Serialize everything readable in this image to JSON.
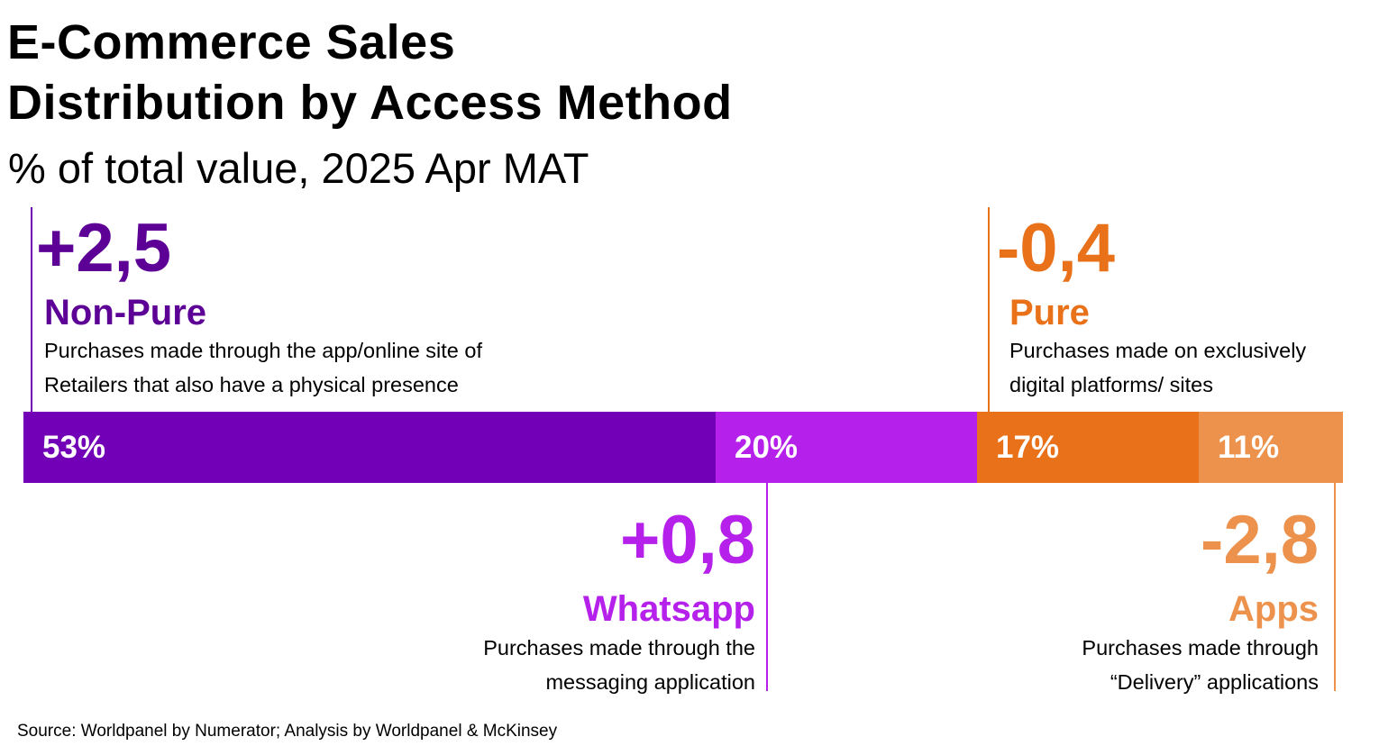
{
  "title_line1": "E-Commerce Sales",
  "title_line2": "Distribution by Access Method",
  "subtitle": "% of total value, 2025 Apr MAT",
  "source": "Source: Worldpanel by Numerator; Analysis by Worldpanel & McKinsey",
  "chart_data": {
    "type": "bar",
    "orientation": "horizontal-stacked",
    "title": "E-Commerce Sales Distribution by Access Method",
    "subtitle": "% of total value, 2025 Apr MAT",
    "categories": [
      "Non-Pure",
      "Whatsapp",
      "Pure",
      "Apps"
    ],
    "values": [
      53,
      20,
      17,
      11
    ],
    "value_labels": [
      "53%",
      "20%",
      "17%",
      "11%"
    ],
    "colors": [
      "#7100b7",
      "#b520eb",
      "#e8711a",
      "#ec924c"
    ],
    "changes": [
      2.5,
      0.8,
      -0.4,
      -2.8
    ],
    "change_labels": [
      "+2,5",
      "+0,8",
      "-0,4",
      "-2,8"
    ],
    "descriptions": [
      [
        "Purchases made through the app/online site of",
        "Retailers that also have a physical presence"
      ],
      [
        "Purchases made through the",
        "messaging application"
      ],
      [
        "Purchases made on exclusively",
        "digital platforms/ sites"
      ],
      [
        "Purchases made through",
        "“Delivery” applications"
      ]
    ]
  }
}
